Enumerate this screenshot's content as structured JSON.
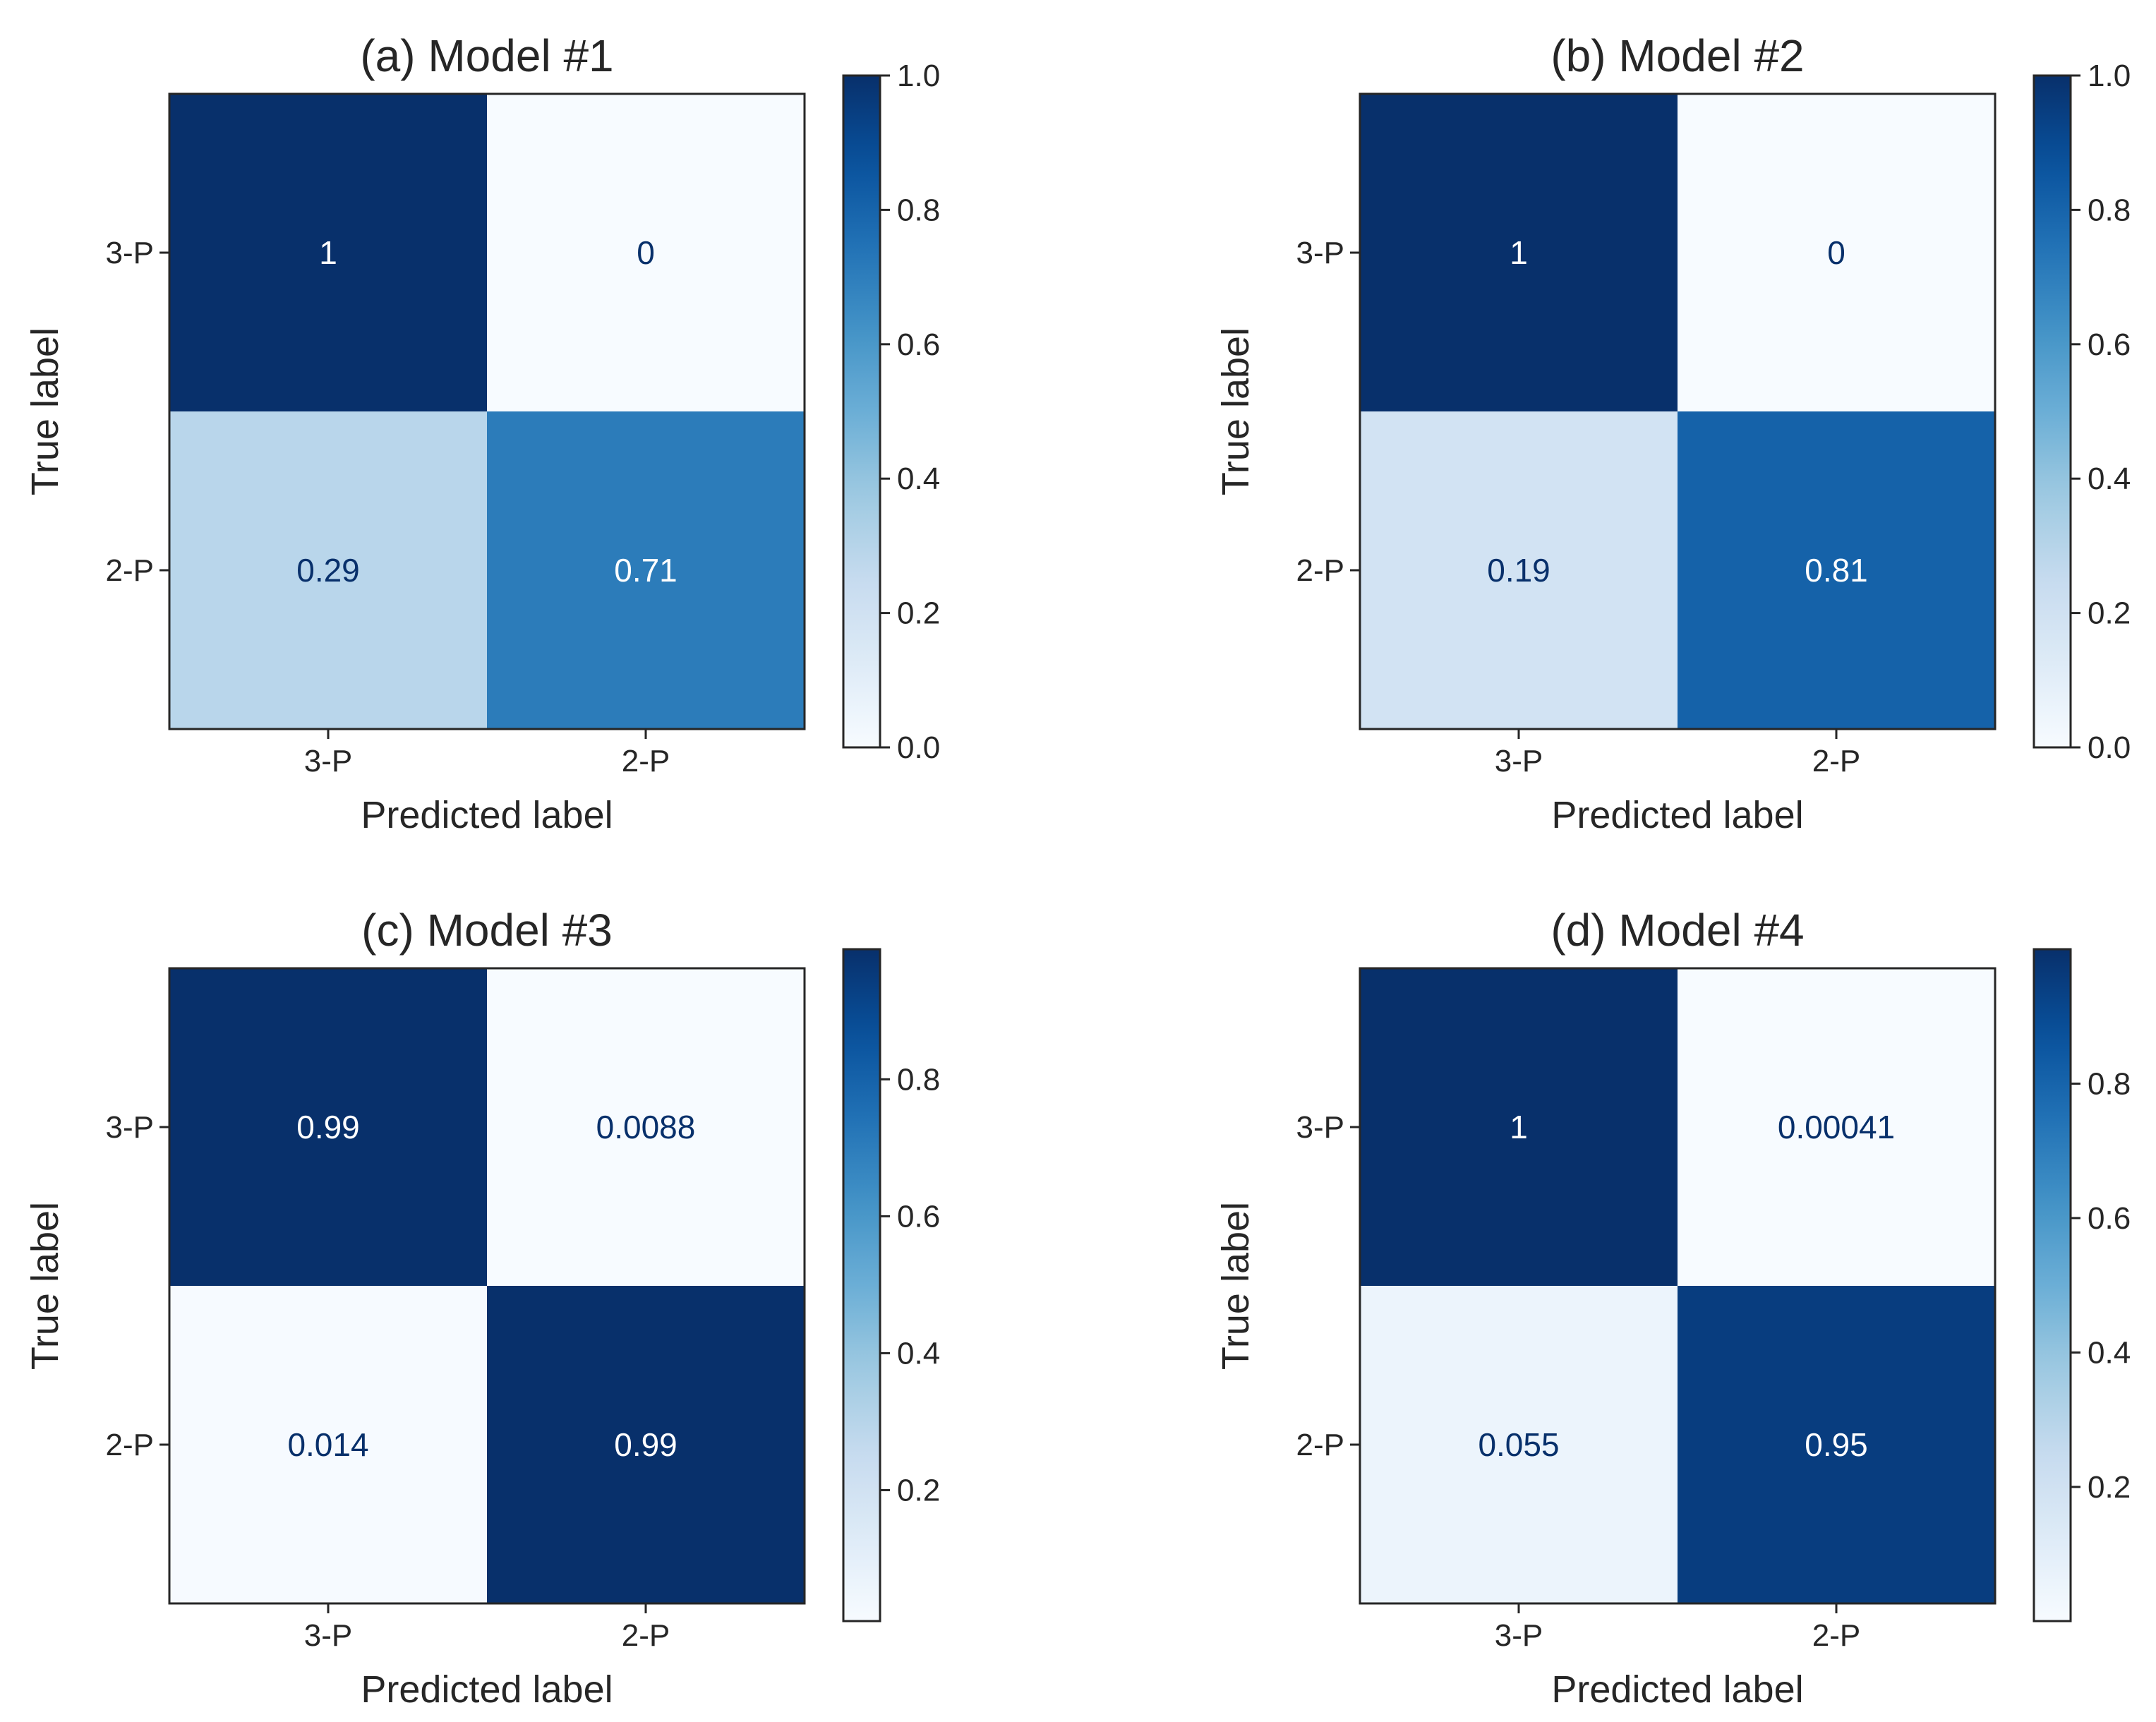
{
  "chart_data": [
    {
      "type": "heatmap",
      "title": "(a) Model #1",
      "xlabel": "Predicted label",
      "ylabel": "True label",
      "x_categories": [
        "3-P",
        "2-P"
      ],
      "y_categories": [
        "3-P",
        "2-P"
      ],
      "values": [
        [
          1,
          0
        ],
        [
          0.29,
          0.71
        ]
      ],
      "value_labels": [
        [
          "1",
          "0"
        ],
        [
          "0.29",
          "0.71"
        ]
      ],
      "colormap": "Blues",
      "colorbar": {
        "range": [
          0,
          1.0
        ],
        "ticks": [
          0.0,
          0.2,
          0.4,
          0.6,
          0.8,
          1.0
        ],
        "tick_labels": [
          "0.0",
          "0.2",
          "0.4",
          "0.6",
          "0.8",
          "1.0"
        ]
      }
    },
    {
      "type": "heatmap",
      "title": "(b) Model #2",
      "xlabel": "Predicted label",
      "ylabel": "True label",
      "x_categories": [
        "3-P",
        "2-P"
      ],
      "y_categories": [
        "3-P",
        "2-P"
      ],
      "values": [
        [
          1,
          0
        ],
        [
          0.19,
          0.81
        ]
      ],
      "value_labels": [
        [
          "1",
          "0"
        ],
        [
          "0.19",
          "0.81"
        ]
      ],
      "colormap": "Blues",
      "colorbar": {
        "range": [
          0,
          1.0
        ],
        "ticks": [
          0.0,
          0.2,
          0.4,
          0.6,
          0.8,
          1.0
        ],
        "tick_labels": [
          "0.0",
          "0.2",
          "0.4",
          "0.6",
          "0.8",
          "1.0"
        ]
      }
    },
    {
      "type": "heatmap",
      "title": "(c) Model #3",
      "xlabel": "Predicted label",
      "ylabel": "True label",
      "x_categories": [
        "3-P",
        "2-P"
      ],
      "y_categories": [
        "3-P",
        "2-P"
      ],
      "values": [
        [
          0.99,
          0.0088
        ],
        [
          0.014,
          0.99
        ]
      ],
      "value_labels": [
        [
          "0.99",
          "0.0088"
        ],
        [
          "0.014",
          "0.99"
        ]
      ],
      "colormap": "Blues",
      "colorbar": {
        "range": [
          0.0088,
          0.99
        ],
        "ticks": [
          0.2,
          0.4,
          0.6,
          0.8
        ],
        "tick_labels": [
          "0.2",
          "0.4",
          "0.6",
          "0.8"
        ]
      }
    },
    {
      "type": "heatmap",
      "title": "(d) Model #4",
      "xlabel": "Predicted label",
      "ylabel": "True label",
      "x_categories": [
        "3-P",
        "2-P"
      ],
      "y_categories": [
        "3-P",
        "2-P"
      ],
      "values": [
        [
          1,
          0.00041
        ],
        [
          0.055,
          0.95
        ]
      ],
      "value_labels": [
        [
          "1",
          "0.00041"
        ],
        [
          "0.055",
          "0.95"
        ]
      ],
      "colormap": "Blues",
      "colorbar": {
        "range": [
          0.00041,
          1.0
        ],
        "ticks": [
          0.2,
          0.4,
          0.6,
          0.8
        ],
        "tick_labels": [
          "0.2",
          "0.4",
          "0.6",
          "0.8"
        ]
      }
    }
  ],
  "colors": {
    "blues": [
      "#f7fbff",
      "#deebf7",
      "#c6dbef",
      "#9ecae1",
      "#6baed6",
      "#4292c6",
      "#2171b5",
      "#08519c",
      "#08306b"
    ],
    "dark_text": "#08306b",
    "light_text": "#ffffff",
    "axis": "#262626"
  }
}
